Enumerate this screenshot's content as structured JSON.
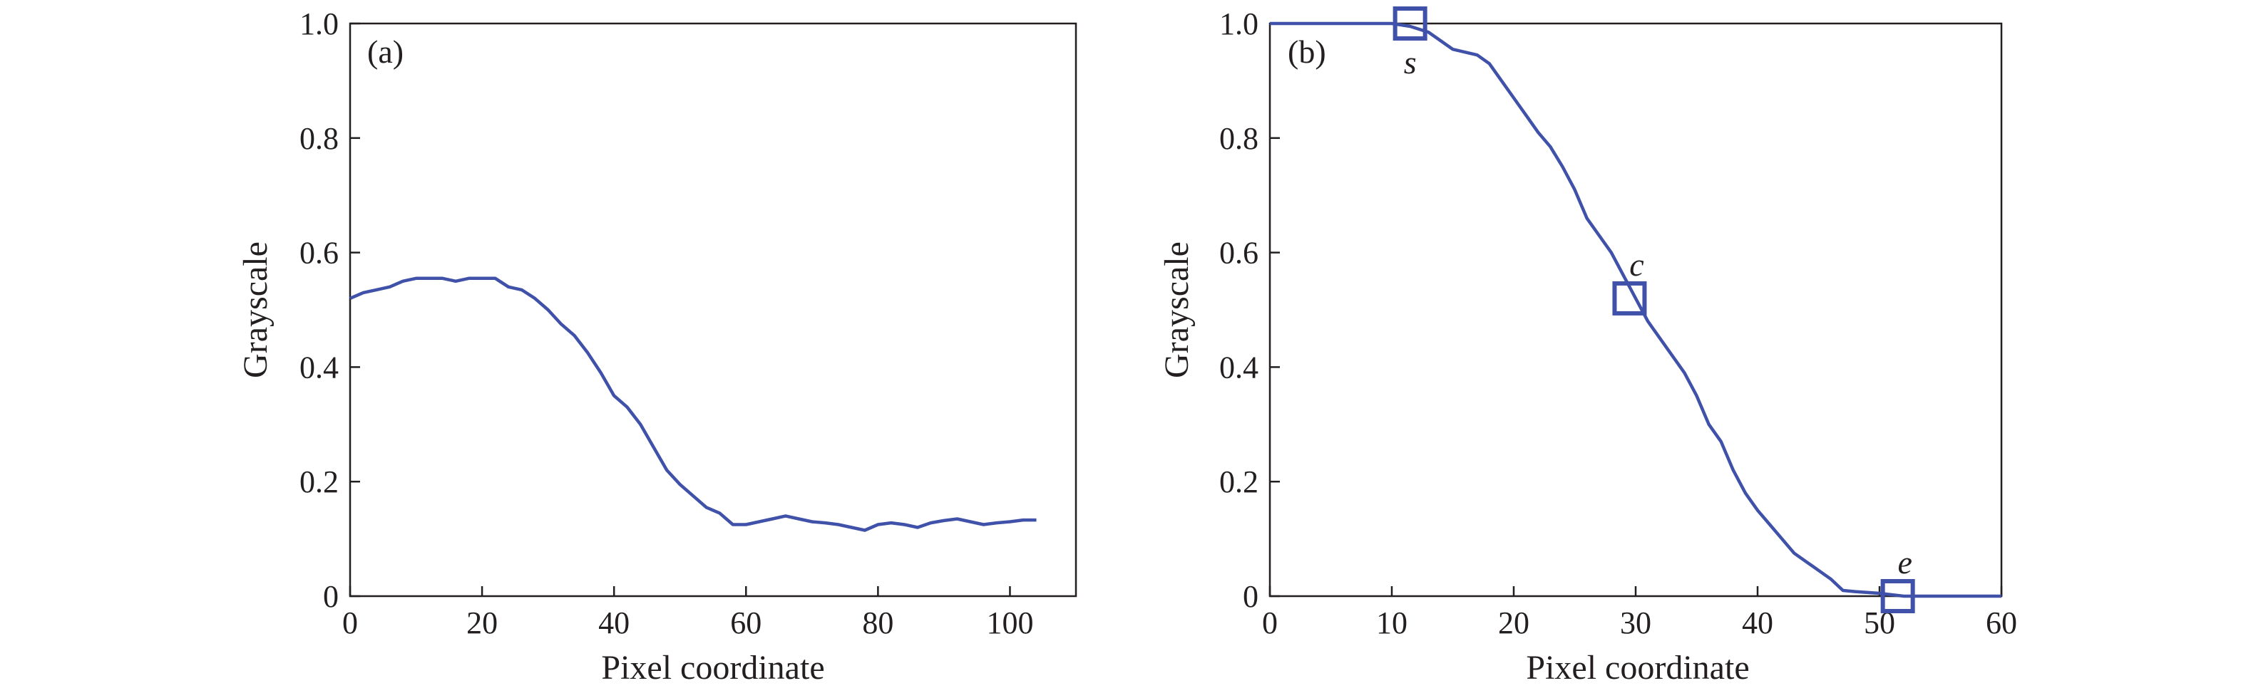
{
  "colors": {
    "series": "#3f51a8",
    "axes": "#231f20",
    "background": "#ffffff"
  },
  "chart_data": [
    {
      "type": "line",
      "panel_label": "(a)",
      "xlabel": "Pixel coordinate",
      "ylabel": "Grayscale",
      "xlim": [
        0,
        110
      ],
      "ylim": [
        0,
        1.0
      ],
      "xticks": [
        0,
        20,
        40,
        60,
        80,
        100
      ],
      "xtick_labels": [
        "0",
        "20",
        "40",
        "60",
        "80",
        "100"
      ],
      "yticks": [
        0,
        0.2,
        0.4,
        0.6,
        0.8,
        1.0
      ],
      "ytick_labels": [
        "0",
        "0.2",
        "0.4",
        "0.6",
        "0.8",
        "1.0"
      ],
      "series": [
        {
          "x": [
            0,
            2,
            4,
            6,
            8,
            10,
            12,
            14,
            16,
            18,
            20,
            22,
            24,
            26,
            28,
            30,
            32,
            34,
            36,
            38,
            40,
            42,
            44,
            46,
            48,
            50,
            52,
            54,
            56,
            58,
            60,
            62,
            64,
            66,
            68,
            70,
            72,
            74,
            76,
            78,
            80,
            82,
            84,
            86,
            88,
            90,
            92,
            94,
            96,
            98,
            100,
            102,
            104
          ],
          "y": [
            0.52,
            0.53,
            0.535,
            0.54,
            0.55,
            0.555,
            0.555,
            0.555,
            0.55,
            0.555,
            0.555,
            0.555,
            0.54,
            0.535,
            0.52,
            0.5,
            0.475,
            0.455,
            0.425,
            0.39,
            0.35,
            0.33,
            0.3,
            0.26,
            0.22,
            0.195,
            0.175,
            0.155,
            0.145,
            0.125,
            0.125,
            0.13,
            0.135,
            0.14,
            0.135,
            0.13,
            0.128,
            0.125,
            0.12,
            0.115,
            0.125,
            0.128,
            0.125,
            0.12,
            0.128,
            0.132,
            0.135,
            0.13,
            0.125,
            0.128,
            0.13,
            0.133,
            0.133
          ]
        }
      ]
    },
    {
      "type": "line",
      "panel_label": "(b)",
      "xlabel": "Pixel coordinate",
      "ylabel": "Grayscale",
      "xlim": [
        0,
        60
      ],
      "ylim": [
        0,
        1.0
      ],
      "xticks": [
        0,
        10,
        20,
        30,
        40,
        50,
        60
      ],
      "xtick_labels": [
        "0",
        "10",
        "20",
        "30",
        "40",
        "50",
        "60"
      ],
      "yticks": [
        0,
        0.2,
        0.4,
        0.6,
        0.8,
        1.0
      ],
      "ytick_labels": [
        "0",
        "0.2",
        "0.4",
        "0.6",
        "0.8",
        "1.0"
      ],
      "series": [
        {
          "x": [
            0,
            10,
            11.5,
            13,
            14,
            15,
            16,
            17,
            18,
            19,
            20,
            21,
            22,
            23,
            24,
            25,
            26,
            27,
            28,
            29,
            30,
            31,
            32,
            33,
            34,
            35,
            36,
            37,
            38,
            39,
            40,
            41,
            42,
            43,
            44,
            45,
            46,
            47,
            48,
            50,
            52,
            60
          ],
          "y": [
            1.0,
            1.0,
            0.995,
            0.985,
            0.97,
            0.955,
            0.95,
            0.945,
            0.93,
            0.9,
            0.87,
            0.84,
            0.81,
            0.785,
            0.75,
            0.71,
            0.66,
            0.63,
            0.6,
            0.56,
            0.52,
            0.48,
            0.45,
            0.42,
            0.39,
            0.35,
            0.3,
            0.27,
            0.22,
            0.18,
            0.15,
            0.125,
            0.1,
            0.075,
            0.06,
            0.045,
            0.03,
            0.01,
            0.008,
            0.005,
            0.0,
            0.0
          ]
        }
      ],
      "markers": [
        {
          "label": "s",
          "x": 11.5,
          "y": 1.0
        },
        {
          "label": "c",
          "x": 29.5,
          "y": 0.52
        },
        {
          "label": "e",
          "x": 51.5,
          "y": 0.0
        }
      ]
    }
  ]
}
